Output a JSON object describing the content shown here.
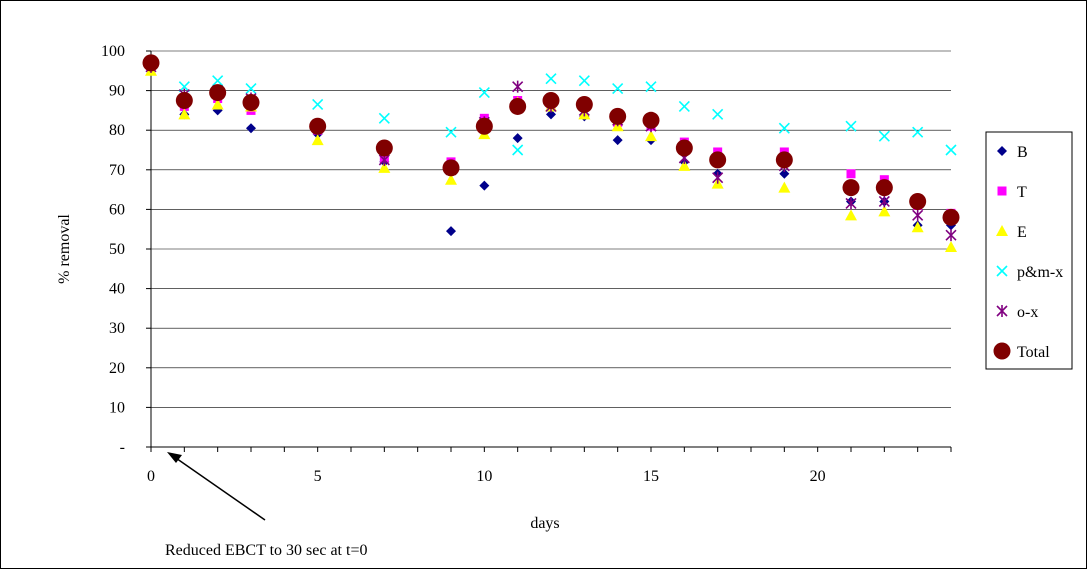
{
  "chart_data": {
    "type": "scatter",
    "xlabel": "days",
    "ylabel": "% removal",
    "xlim": [
      0,
      24
    ],
    "ylim": [
      0,
      100
    ],
    "x_ticks": [
      "0",
      "5",
      "10",
      "15",
      "20"
    ],
    "y_ticks": [
      "-",
      "10",
      "20",
      "30",
      "40",
      "50",
      "60",
      "70",
      "80",
      "90",
      "100"
    ],
    "grid": "horizontal",
    "legend_position": "right",
    "annotation": "Reduced EBCT to 30 sec at t=0",
    "series": [
      {
        "name": "B",
        "color": "#00008B",
        "marker": "diamond",
        "x": [
          0,
          1,
          2,
          3,
          5,
          7,
          9,
          10,
          11,
          12,
          13,
          14,
          15,
          16,
          17,
          19,
          21,
          22,
          23,
          24
        ],
        "y": [
          97,
          84,
          85,
          80.5,
          79,
          72,
          54.5,
          66,
          78,
          84,
          83.5,
          77.5,
          77.5,
          72,
          69,
          69,
          62,
          62,
          56,
          56
        ]
      },
      {
        "name": "T",
        "color": "#FF00FF",
        "marker": "square",
        "x": [
          0,
          1,
          2,
          3,
          5,
          7,
          9,
          10,
          11,
          12,
          13,
          14,
          15,
          16,
          17,
          19,
          21,
          22,
          23,
          24
        ],
        "y": [
          96,
          86,
          88,
          85,
          80,
          73,
          72,
          83,
          87.5,
          86,
          86,
          82,
          81,
          77,
          74.5,
          74.5,
          69,
          67.5,
          61,
          59
        ]
      },
      {
        "name": "E",
        "color": "#FFFF00",
        "marker": "triangle",
        "x": [
          0,
          1,
          2,
          3,
          5,
          7,
          9,
          10,
          11,
          12,
          13,
          14,
          15,
          16,
          17,
          19,
          21,
          22,
          23,
          24
        ],
        "y": [
          95,
          84,
          86.5,
          86,
          77.5,
          70.5,
          67.5,
          79,
          87,
          86,
          84,
          81,
          78.5,
          71,
          66.5,
          65.5,
          58.5,
          59.5,
          55.5,
          50.5
        ]
      },
      {
        "name": "p&m-x",
        "color": "#00FFFF",
        "marker": "x",
        "x": [
          0,
          1,
          2,
          3,
          5,
          7,
          9,
          10,
          11,
          12,
          13,
          14,
          15,
          16,
          17,
          19,
          21,
          22,
          23,
          24
        ],
        "y": [
          97,
          91,
          92.5,
          90.5,
          86.5,
          83,
          79.5,
          89.5,
          75,
          93,
          92.5,
          90.5,
          91,
          86,
          84,
          80.5,
          81,
          78.5,
          79.5,
          75
        ]
      },
      {
        "name": "o-x",
        "color": "#800080",
        "marker": "star",
        "x": [
          0,
          1,
          2,
          3,
          5,
          7,
          9,
          10,
          11,
          12,
          13,
          14,
          15,
          16,
          17,
          19,
          21,
          22,
          23,
          24
        ],
        "y": [
          96,
          89,
          90,
          88,
          80.5,
          72.5,
          70,
          82,
          91,
          86,
          85,
          82.5,
          81,
          73,
          68,
          71,
          61.5,
          62,
          58.5,
          53.5
        ]
      },
      {
        "name": "Total",
        "color": "#800000",
        "marker": "circle",
        "x": [
          0,
          1,
          2,
          3,
          5,
          7,
          9,
          10,
          11,
          12,
          13,
          14,
          15,
          16,
          17,
          19,
          21,
          22,
          23,
          24
        ],
        "y": [
          97,
          87.5,
          89.5,
          87,
          81,
          75.5,
          70.5,
          81,
          86,
          87.5,
          86.5,
          83.5,
          82.5,
          75.5,
          72.5,
          72.5,
          65.5,
          65.5,
          62,
          58
        ]
      }
    ]
  }
}
